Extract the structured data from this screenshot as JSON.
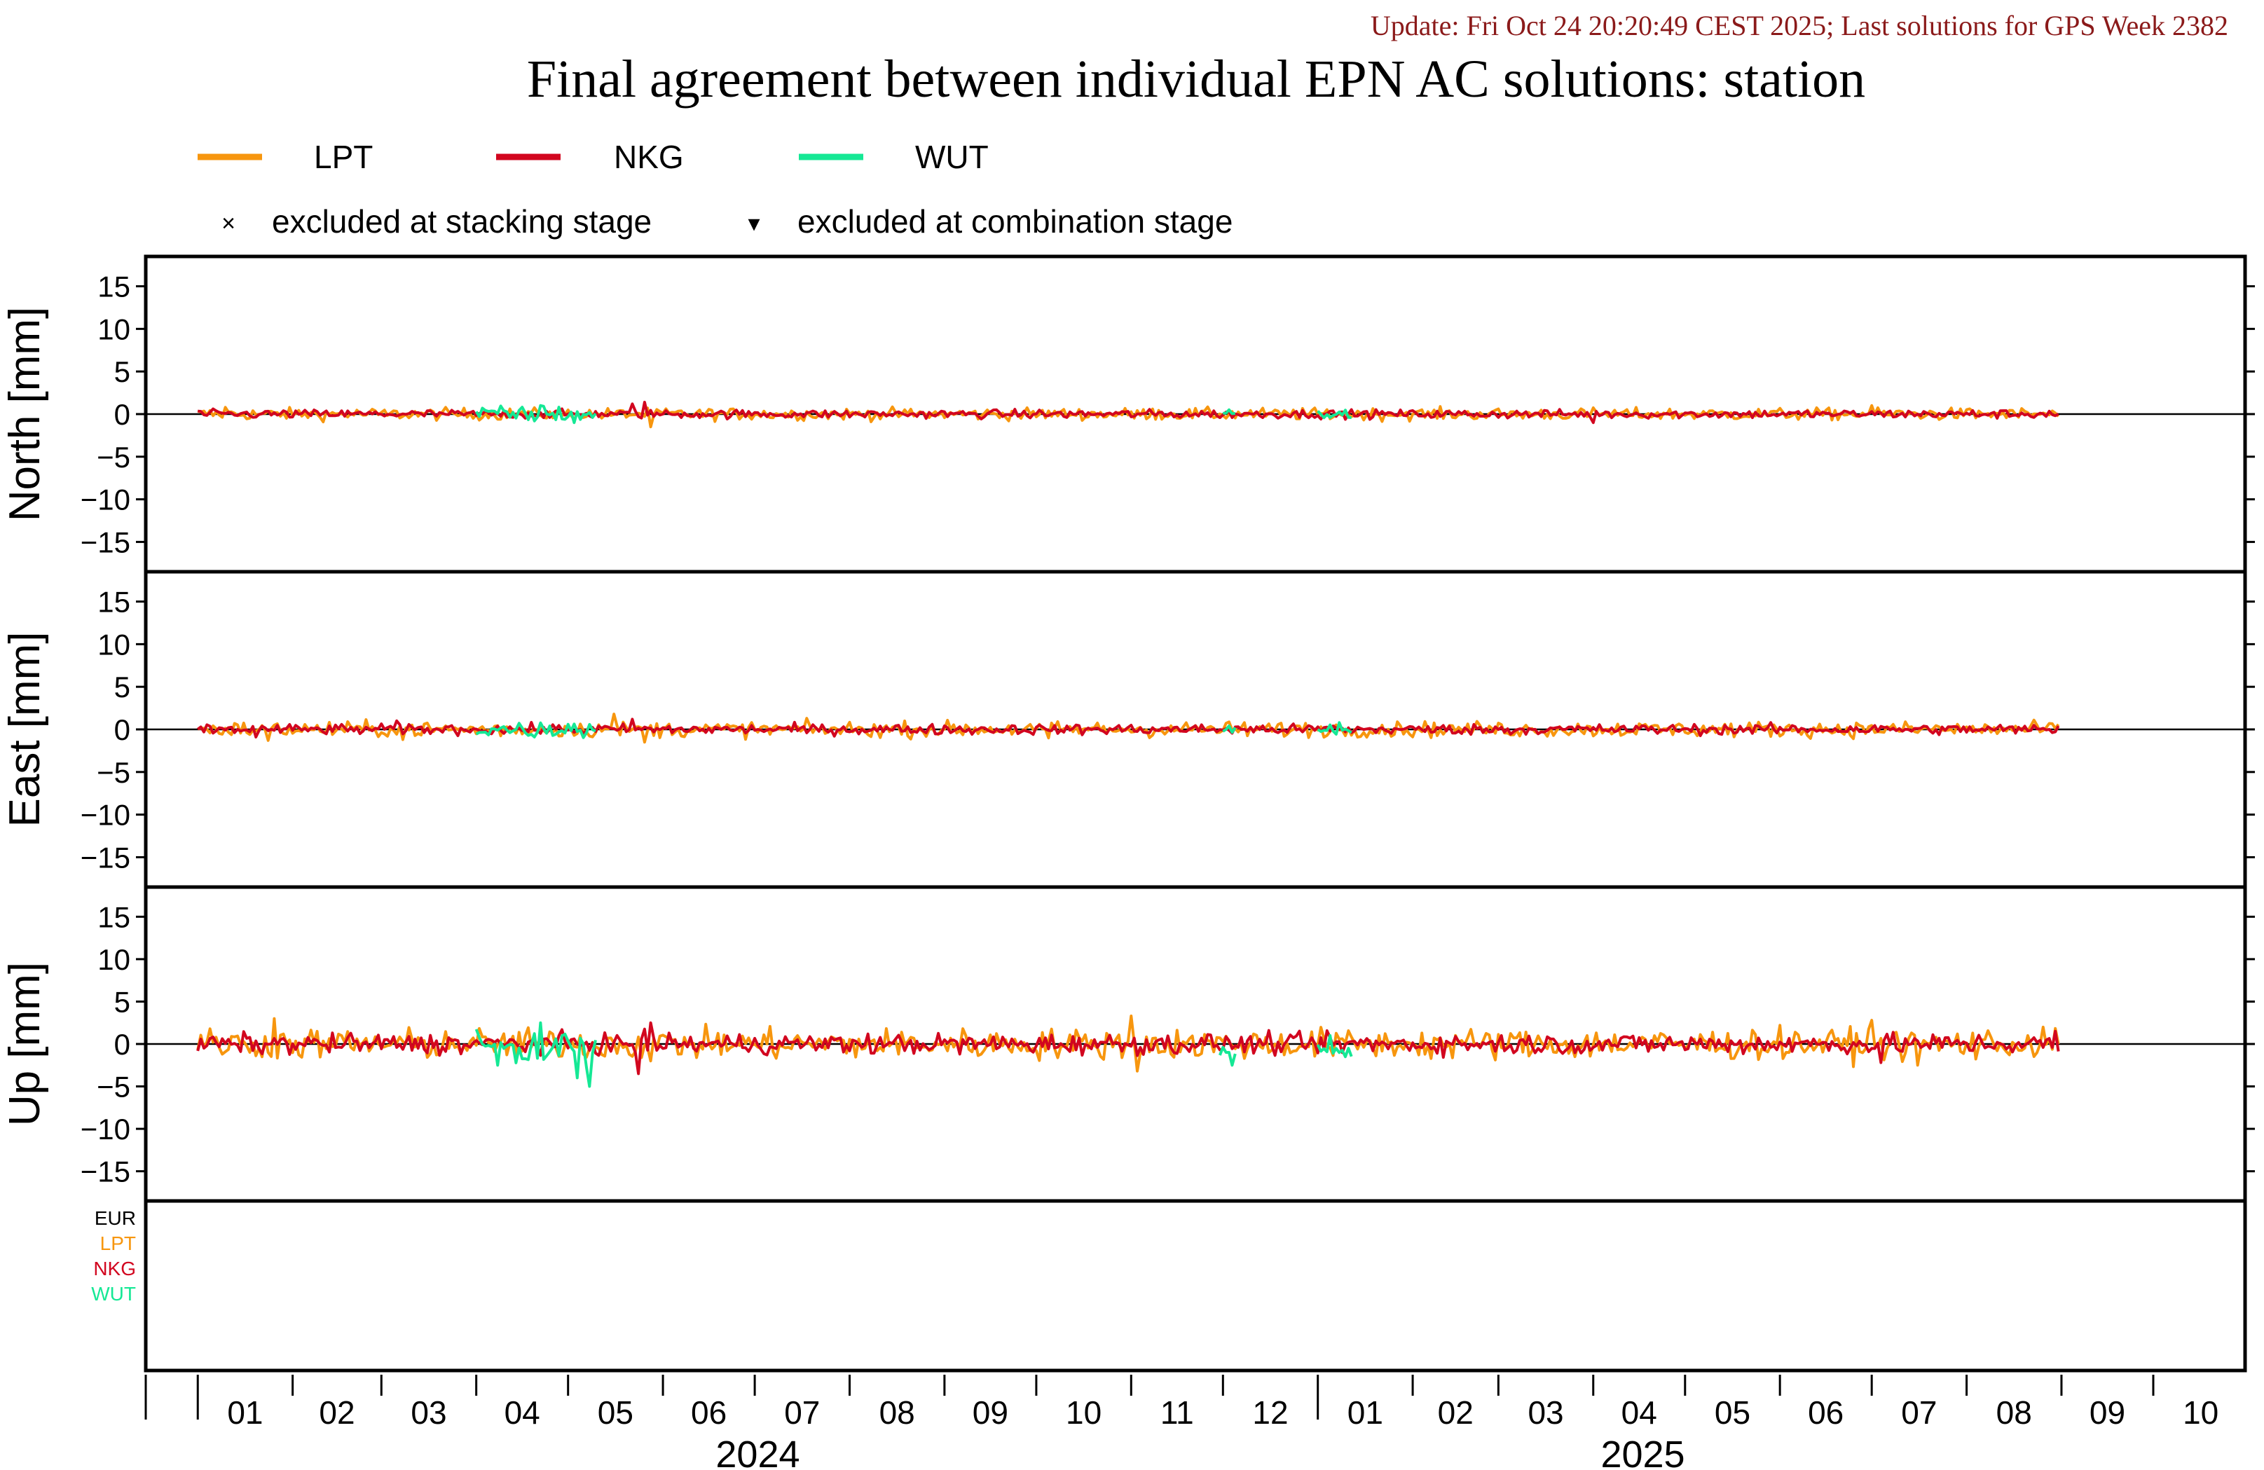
{
  "header": {
    "update_text": "Update: Fri Oct 24 20:20:49 CEST 2025; Last solutions for GPS Week 2382",
    "title": "Final agreement between individual EPN AC solutions: station"
  },
  "colors": {
    "LPT": "#f7960e",
    "NKG": "#d2061f",
    "WUT": "#15e895",
    "EUR": "#000000",
    "update_text": "#8b1a1a",
    "axis": "#000000"
  },
  "legend": {
    "series": [
      {
        "key": "LPT",
        "label": "LPT"
      },
      {
        "key": "NKG",
        "label": "NKG"
      },
      {
        "key": "WUT",
        "label": "WUT"
      }
    ],
    "markers": [
      {
        "symbol": "×",
        "label": "excluded at stacking stage"
      },
      {
        "symbol": "▾",
        "label": "excluded at combination stage"
      }
    ]
  },
  "chart_data": {
    "type": "line",
    "x_unit": "month",
    "x_range": [
      "2023-12-15",
      "2025-10-31"
    ],
    "y_ticks": [
      15,
      10,
      5,
      0,
      -5,
      -10,
      -15
    ],
    "y_range": [
      -18.5,
      18.5
    ],
    "panels": [
      {
        "key": "north",
        "ylabel": "North [mm]",
        "series": [
          {
            "name": "LPT",
            "x_start": "2024-01-01",
            "x_end": "2025-08-31",
            "level": 0.0,
            "noise": 0.35,
            "spikes": [
              [
                "2024-01-10",
                0.8
              ],
              [
                "2024-05-28",
                -1.5
              ],
              [
                "2024-11-08",
                0.6
              ],
              [
                "2025-07-01",
                1.0
              ]
            ]
          },
          {
            "name": "NKG",
            "x_start": "2024-01-01",
            "x_end": "2025-08-31",
            "level": 0.0,
            "noise": 0.25,
            "spikes": [
              [
                "2024-05-22",
                1.2
              ],
              [
                "2024-05-26",
                1.4
              ],
              [
                "2025-04-01",
                -1.0
              ]
            ]
          },
          {
            "name": "WUT",
            "x_start": "2024-04-01",
            "x_end": "2024-05-10",
            "level": 0.0,
            "noise": 0.5,
            "spikes": [
              [
                "2024-04-22",
                1.0
              ],
              [
                "2024-05-03",
                -1.0
              ]
            ]
          },
          {
            "name": "WUT",
            "x_start": "2024-12-01",
            "x_end": "2024-12-05",
            "level": 0.0,
            "noise": 0.3,
            "spikes": [
              [
                "2024-12-03",
                0.5
              ]
            ]
          },
          {
            "name": "WUT",
            "x_start": "2025-01-01",
            "x_end": "2025-01-12",
            "level": 0.0,
            "noise": 0.3,
            "spikes": [
              [
                "2025-01-05",
                -0.4
              ]
            ]
          }
        ]
      },
      {
        "key": "east",
        "ylabel": "East [mm]",
        "series": [
          {
            "name": "LPT",
            "x_start": "2024-01-01",
            "x_end": "2025-08-31",
            "level": 0.0,
            "noise": 0.45,
            "spikes": [
              [
                "2024-01-24",
                -1.3
              ],
              [
                "2024-03-08",
                -1.2
              ],
              [
                "2024-05-16",
                1.8
              ],
              [
                "2024-05-26",
                -1.5
              ],
              [
                "2024-10-05",
                -1.0
              ],
              [
                "2025-08-28",
                0.7
              ]
            ]
          },
          {
            "name": "NKG",
            "x_start": "2024-01-01",
            "x_end": "2025-08-31",
            "level": 0.0,
            "noise": 0.3,
            "spikes": [
              [
                "2024-01-20",
                -0.9
              ],
              [
                "2024-03-06",
                1.0
              ],
              [
                "2024-05-22",
                1.2
              ]
            ]
          },
          {
            "name": "WUT",
            "x_start": "2024-04-01",
            "x_end": "2024-05-10",
            "level": 0.0,
            "noise": 0.45,
            "spikes": [
              [
                "2024-04-20",
                -0.9
              ],
              [
                "2024-05-01",
                0.6
              ]
            ]
          },
          {
            "name": "WUT",
            "x_start": "2024-12-01",
            "x_end": "2024-12-05",
            "level": 0.0,
            "noise": 0.3,
            "spikes": [
              [
                "2024-12-03",
                0.4
              ]
            ]
          },
          {
            "name": "WUT",
            "x_start": "2025-01-01",
            "x_end": "2025-01-12",
            "level": 0.0,
            "noise": 0.35,
            "spikes": [
              [
                "2025-01-08",
                0.8
              ]
            ]
          }
        ]
      },
      {
        "key": "up",
        "ylabel": "Up [mm]",
        "series": [
          {
            "name": "LPT",
            "x_start": "2024-01-01",
            "x_end": "2025-08-31",
            "level": 0.0,
            "noise": 0.9,
            "spikes": [
              [
                "2024-01-26",
                3.0
              ],
              [
                "2024-05-28",
                -2.0
              ],
              [
                "2024-11-01",
                3.3
              ],
              [
                "2024-11-03",
                -3.2
              ],
              [
                "2025-07-01",
                2.8
              ],
              [
                "2025-07-16",
                -2.5
              ]
            ]
          },
          {
            "name": "NKG",
            "x_start": "2024-01-01",
            "x_end": "2025-08-31",
            "level": 0.0,
            "noise": 0.6,
            "spikes": [
              [
                "2024-05-24",
                -3.5
              ],
              [
                "2024-05-28",
                2.5
              ],
              [
                "2025-07-04",
                -2.2
              ],
              [
                "2025-08-30",
                1.5
              ]
            ]
          },
          {
            "name": "WUT",
            "x_start": "2024-04-01",
            "x_end": "2024-05-10",
            "level": -0.5,
            "noise": 1.3,
            "spikes": [
              [
                "2024-04-08",
                -2.5
              ],
              [
                "2024-04-22",
                2.5
              ],
              [
                "2024-05-04",
                -4.0
              ],
              [
                "2024-05-08",
                -5.0
              ]
            ]
          },
          {
            "name": "WUT",
            "x_start": "2024-11-30",
            "x_end": "2024-12-05",
            "level": -1.0,
            "noise": 0.4,
            "spikes": [
              [
                "2024-12-04",
                -2.5
              ]
            ]
          },
          {
            "name": "WUT",
            "x_start": "2025-01-01",
            "x_end": "2025-01-12",
            "level": -0.3,
            "noise": 0.7,
            "spikes": [
              [
                "2025-01-05",
                1.0
              ],
              [
                "2025-01-10",
                -1.5
              ]
            ]
          }
        ]
      }
    ],
    "bottom_panel_labels": [
      {
        "key": "EUR",
        "label": "EUR"
      },
      {
        "key": "LPT",
        "label": "LPT"
      },
      {
        "key": "NKG",
        "label": "NKG"
      },
      {
        "key": "WUT",
        "label": "WUT"
      }
    ],
    "month_labels": [
      "01",
      "02",
      "03",
      "04",
      "05",
      "06",
      "07",
      "08",
      "09",
      "10",
      "11",
      "12",
      "01",
      "02",
      "03",
      "04",
      "05",
      "06",
      "07",
      "08",
      "09",
      "10"
    ],
    "year_labels": [
      "2024",
      "2025"
    ]
  }
}
